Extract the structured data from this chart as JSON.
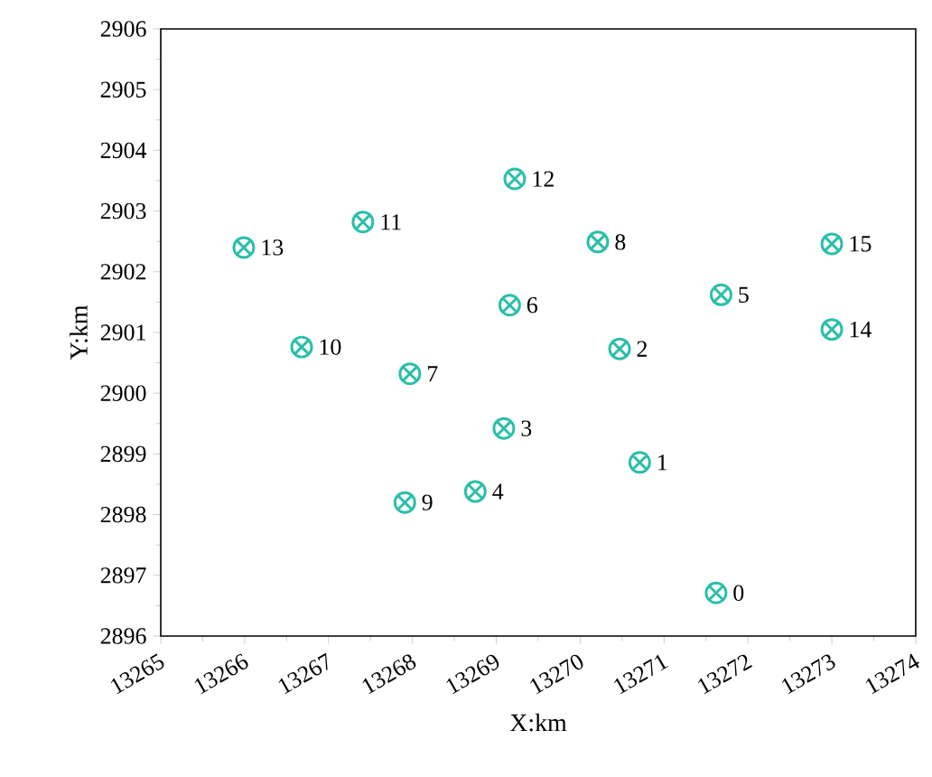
{
  "chart_data": {
    "type": "scatter",
    "xlabel": "X:km",
    "ylabel": "Y:km",
    "xlim": [
      13265,
      13274
    ],
    "ylim": [
      2896,
      2906
    ],
    "xticks": [
      13265,
      13266,
      13267,
      13268,
      13269,
      13270,
      13271,
      13272,
      13273,
      13274
    ],
    "yticks": [
      2896,
      2897,
      2898,
      2899,
      2900,
      2901,
      2902,
      2903,
      2904,
      2905,
      2906
    ],
    "grid": false,
    "marker": "cross",
    "series": [
      {
        "color": "#2bbfa9",
        "x": [
          13271.62,
          13270.71,
          13270.47,
          13269.09,
          13268.75,
          13271.68,
          13269.16,
          13267.97,
          13270.21,
          13267.91,
          13266.68,
          13267.41,
          13269.22,
          13265.99,
          13273.0,
          13273.0
        ],
        "values": [
          2896.71,
          2898.86,
          2900.73,
          2899.42,
          2898.38,
          2901.62,
          2901.45,
          2900.32,
          2902.49,
          2898.2,
          2900.76,
          2902.82,
          2903.53,
          2902.4,
          2901.05,
          2902.46
        ]
      }
    ],
    "annotations": [
      {
        "text": "0",
        "x": 13271.62,
        "y": 2896.71
      },
      {
        "text": "1",
        "x": 13270.71,
        "y": 2898.86
      },
      {
        "text": "2",
        "x": 13270.47,
        "y": 2900.73
      },
      {
        "text": "3",
        "x": 13269.09,
        "y": 2899.42
      },
      {
        "text": "4",
        "x": 13268.75,
        "y": 2898.38
      },
      {
        "text": "5",
        "x": 13271.68,
        "y": 2901.62
      },
      {
        "text": "6",
        "x": 13269.16,
        "y": 2901.45
      },
      {
        "text": "7",
        "x": 13267.97,
        "y": 2900.32
      },
      {
        "text": "8",
        "x": 13270.21,
        "y": 2902.49
      },
      {
        "text": "9",
        "x": 13267.91,
        "y": 2898.2
      },
      {
        "text": "10",
        "x": 13266.68,
        "y": 2900.76
      },
      {
        "text": "11",
        "x": 13267.41,
        "y": 2902.82
      },
      {
        "text": "12",
        "x": 13269.22,
        "y": 2903.53
      },
      {
        "text": "13",
        "x": 13265.99,
        "y": 2902.4
      },
      {
        "text": "14",
        "x": 13273.0,
        "y": 2901.05
      },
      {
        "text": "15",
        "x": 13273.0,
        "y": 2902.46
      }
    ]
  }
}
